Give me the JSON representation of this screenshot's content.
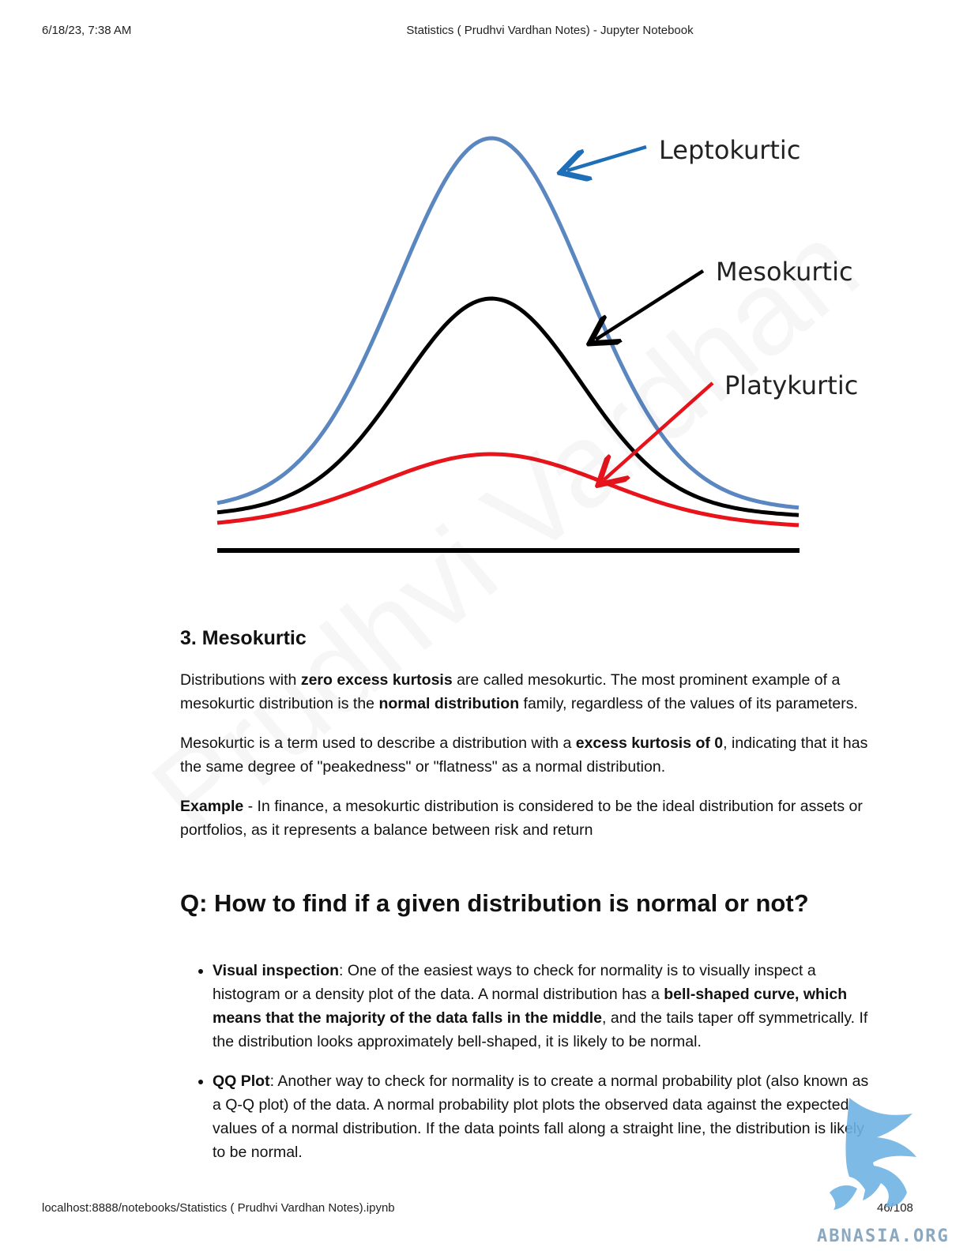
{
  "header": {
    "timestamp": "6/18/23, 7:38 AM",
    "title": "Statistics ( Prudhvi Vardhan Notes) - Jupyter Notebook"
  },
  "figure": {
    "labels": {
      "leptokurtic": "Leptokurtic",
      "mesokurtic": "Mesokurtic",
      "platykurtic": "Platykurtic"
    },
    "colors": {
      "leptokurtic": "#5b87c1",
      "mesokurtic": "#000000",
      "platykurtic": "#e8141b",
      "lepto_arrow": "#1f6fb8"
    }
  },
  "watermark": "Prudhvi Vardhan",
  "section3": {
    "heading": "3. Mesokurtic",
    "p1": {
      "t1": "Distributions with ",
      "b1": "zero excess kurtosis",
      "t2": " are called mesokurtic. The most prominent example of a mesokurtic distribution is the ",
      "b2": "normal distribution",
      "t3": " family, regardless of the values of its parameters."
    },
    "p2": {
      "t1": "Mesokurtic is a term used to describe a distribution with a ",
      "b1": "excess kurtosis of 0",
      "t2": ", indicating that it has the same degree of \"peakedness\" or \"flatness\" as a normal distribution."
    },
    "p3": {
      "b1": "Example",
      "t1": " - In finance, a mesokurtic distribution is considered to be the ideal distribution for assets or portfolios, as it represents a balance between risk and return"
    }
  },
  "question": {
    "heading": "Q: How to find if a given distribution is normal or not?",
    "items": [
      {
        "b1": "Visual inspection",
        "t1": ": One of the easiest ways to check for normality is to visually inspect a histogram or a density plot of the data. A normal distribution has a ",
        "b2": "bell-shaped curve, which means that the majority of the data falls in the middle",
        "t2": ", and the tails taper off symmetrically. If the distribution looks approximately bell-shaped, it is likely to be normal."
      },
      {
        "b1": "QQ Plot",
        "t1": ": Another way to check for normality is to create a normal probability plot (also known as a Q-Q plot) of the data. A normal probability plot plots the observed data against the expected values of a normal distribution. If the data points fall along a straight line, the distribution is likely to be normal."
      }
    ]
  },
  "footer": {
    "url": "localhost:8888/notebooks/Statistics ( Prudhvi Vardhan Notes).ipynb",
    "page": "46/108"
  },
  "logo": {
    "text": "ABNASIA.ORG",
    "color": "#6fb3e3"
  }
}
